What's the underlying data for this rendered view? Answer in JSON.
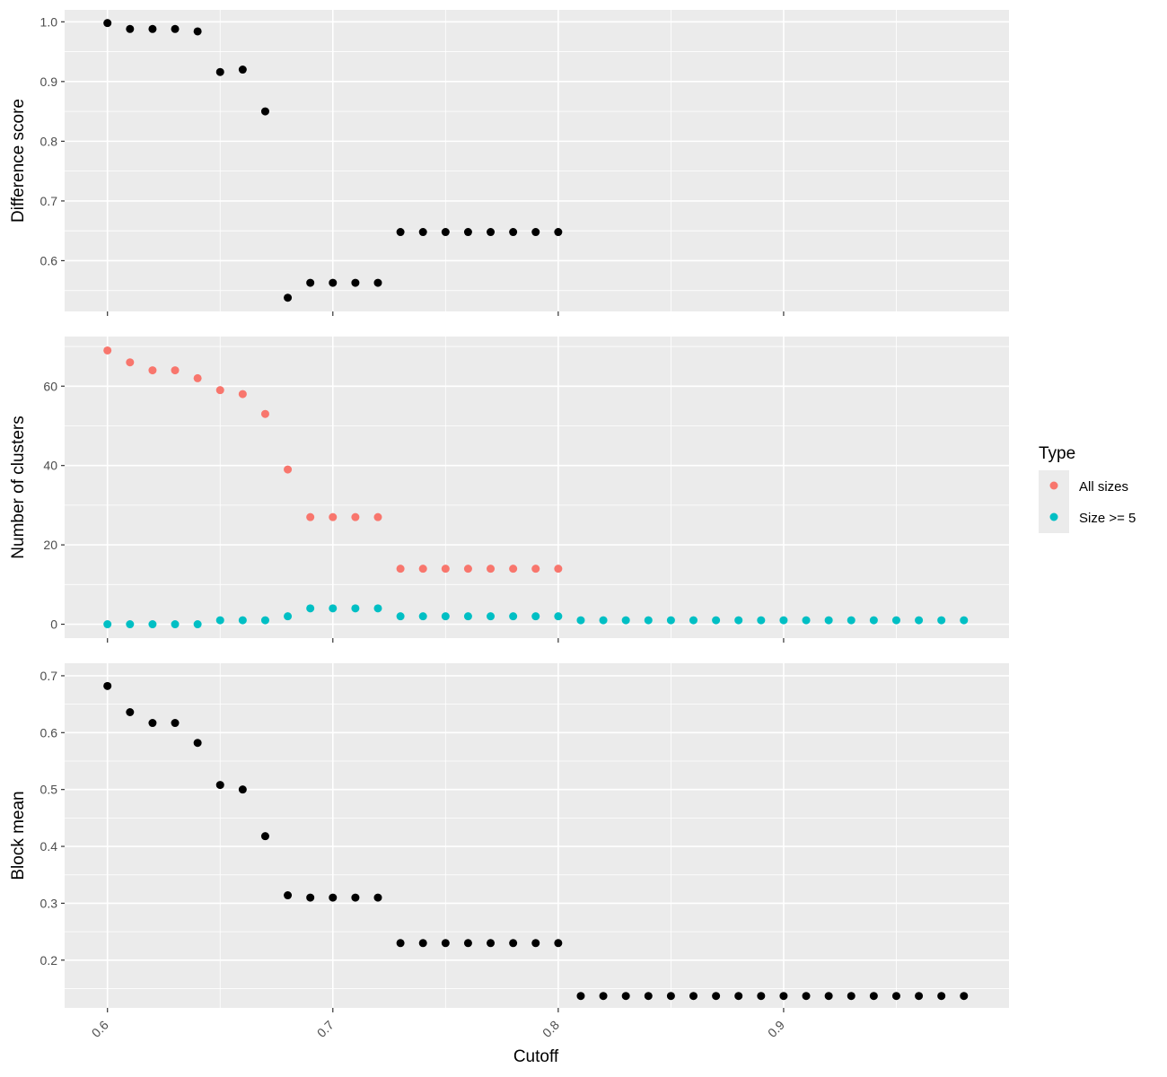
{
  "chart_data": {
    "type": "scatter",
    "xlabel": "Cutoff",
    "xlim": [
      0.581,
      1.0
    ],
    "x_ticks": [
      0.6,
      0.7,
      0.8,
      0.9
    ],
    "x_tick_labels": [
      "0.6",
      "0.7",
      "0.8",
      "0.9"
    ],
    "legend": {
      "title": "Type",
      "placement": "right",
      "entries": [
        {
          "label": "All sizes",
          "color": "#F8766D"
        },
        {
          "label": "Size >= 5",
          "color": "#00BFC4"
        }
      ]
    },
    "panels": [
      {
        "ylabel": "Difference score",
        "ylim": [
          0.515,
          1.02
        ],
        "y_ticks": [
          0.6,
          0.7,
          0.8,
          0.9,
          1.0
        ],
        "y_tick_labels": [
          "0.6",
          "0.7",
          "0.8",
          "0.9",
          "1.0"
        ],
        "series": [
          {
            "color": "#000000",
            "x": [
              0.6,
              0.61,
              0.62,
              0.63,
              0.64,
              0.65,
              0.66,
              0.67,
              0.68,
              0.69,
              0.7,
              0.71,
              0.72,
              0.73,
              0.74,
              0.75,
              0.76,
              0.77,
              0.78,
              0.79,
              0.8
            ],
            "y": [
              0.998,
              0.988,
              0.988,
              0.988,
              0.984,
              0.916,
              0.92,
              0.85,
              0.538,
              0.563,
              0.563,
              0.563,
              0.563,
              0.648,
              0.648,
              0.648,
              0.648,
              0.648,
              0.648,
              0.648,
              0.648
            ]
          }
        ]
      },
      {
        "ylabel": "Number of clusters",
        "ylim": [
          -3.5,
          72.5
        ],
        "y_ticks": [
          0,
          20,
          40,
          60
        ],
        "y_tick_labels": [
          "0",
          "20",
          "40",
          "60"
        ],
        "series": [
          {
            "name": "All sizes",
            "color": "#F8766D",
            "x": [
              0.6,
              0.61,
              0.62,
              0.63,
              0.64,
              0.65,
              0.66,
              0.67,
              0.68,
              0.69,
              0.7,
              0.71,
              0.72,
              0.73,
              0.74,
              0.75,
              0.76,
              0.77,
              0.78,
              0.79,
              0.8
            ],
            "y": [
              69,
              66,
              64,
              64,
              62,
              59,
              58,
              53,
              39,
              27,
              27,
              27,
              27,
              14,
              14,
              14,
              14,
              14,
              14,
              14,
              14
            ]
          },
          {
            "name": "Size >= 5",
            "color": "#00BFC4",
            "x": [
              0.6,
              0.61,
              0.62,
              0.63,
              0.64,
              0.65,
              0.66,
              0.67,
              0.68,
              0.69,
              0.7,
              0.71,
              0.72,
              0.73,
              0.74,
              0.75,
              0.76,
              0.77,
              0.78,
              0.79,
              0.8,
              0.81,
              0.82,
              0.83,
              0.84,
              0.85,
              0.86,
              0.87,
              0.88,
              0.89,
              0.9,
              0.91,
              0.92,
              0.93,
              0.94,
              0.95,
              0.96,
              0.97,
              0.98
            ],
            "y": [
              0,
              0,
              0,
              0,
              0,
              1,
              1,
              1,
              2,
              4,
              4,
              4,
              4,
              2,
              2,
              2,
              2,
              2,
              2,
              2,
              2,
              1,
              1,
              1,
              1,
              1,
              1,
              1,
              1,
              1,
              1,
              1,
              1,
              1,
              1,
              1,
              1,
              1,
              1
            ]
          }
        ]
      },
      {
        "ylabel": "Block mean",
        "ylim": [
          0.116,
          0.722
        ],
        "y_ticks": [
          0.2,
          0.3,
          0.4,
          0.5,
          0.6,
          0.7
        ],
        "y_tick_labels": [
          "0.2",
          "0.3",
          "0.4",
          "0.5",
          "0.6",
          "0.7"
        ],
        "series": [
          {
            "color": "#000000",
            "x": [
              0.6,
              0.61,
              0.62,
              0.63,
              0.64,
              0.65,
              0.66,
              0.67,
              0.68,
              0.69,
              0.7,
              0.71,
              0.72,
              0.73,
              0.74,
              0.75,
              0.76,
              0.77,
              0.78,
              0.79,
              0.8,
              0.81,
              0.82,
              0.83,
              0.84,
              0.85,
              0.86,
              0.87,
              0.88,
              0.89,
              0.9,
              0.91,
              0.92,
              0.93,
              0.94,
              0.95,
              0.96,
              0.97,
              0.98
            ],
            "y": [
              0.682,
              0.636,
              0.617,
              0.617,
              0.582,
              0.508,
              0.5,
              0.418,
              0.314,
              0.31,
              0.31,
              0.31,
              0.31,
              0.23,
              0.23,
              0.23,
              0.23,
              0.23,
              0.23,
              0.23,
              0.23,
              0.137,
              0.137,
              0.137,
              0.137,
              0.137,
              0.137,
              0.137,
              0.137,
              0.137,
              0.137,
              0.137,
              0.137,
              0.137,
              0.137,
              0.137,
              0.137,
              0.137,
              0.137
            ]
          }
        ]
      }
    ]
  }
}
